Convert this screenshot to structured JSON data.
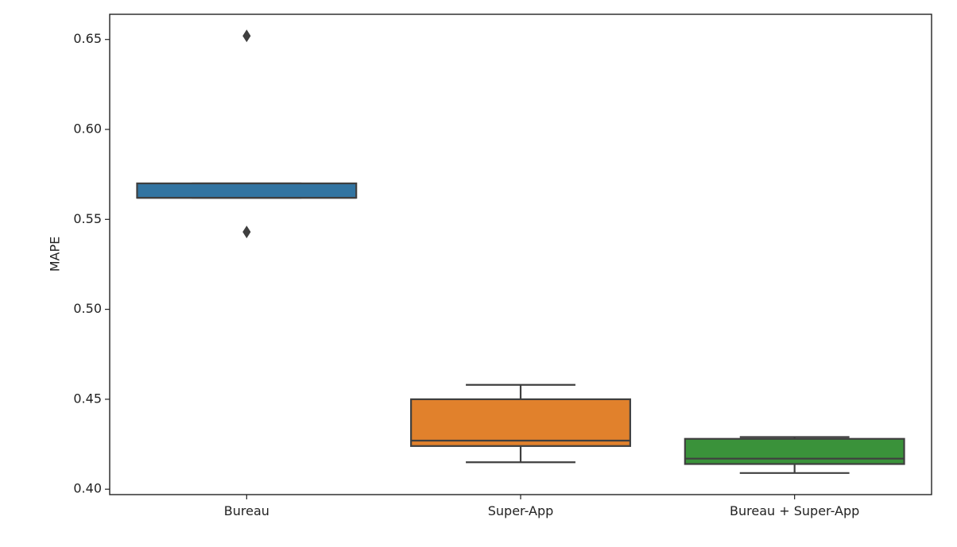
{
  "chart_data": {
    "type": "box",
    "title": "",
    "xlabel": "",
    "ylabel": "MAPE",
    "ylim": [
      0.397,
      0.664
    ],
    "yticks": [
      0.4,
      0.45,
      0.5,
      0.55,
      0.6,
      0.65
    ],
    "ytick_labels": [
      "0.40",
      "0.45",
      "0.50",
      "0.55",
      "0.60",
      "0.65"
    ],
    "categories": [
      "Bureau",
      "Super-App",
      "Bureau + Super-App"
    ],
    "boxes": [
      {
        "category": "Bureau",
        "color": "#3274a1",
        "whisker_low": 0.562,
        "q1": 0.562,
        "median": 0.562,
        "q3": 0.57,
        "whisker_high": 0.57,
        "outliers": [
          0.652,
          0.543
        ]
      },
      {
        "category": "Super-App",
        "color": "#e1812c",
        "whisker_low": 0.415,
        "q1": 0.424,
        "median": 0.427,
        "q3": 0.45,
        "whisker_high": 0.458,
        "outliers": []
      },
      {
        "category": "Bureau + Super-App",
        "color": "#3a923a",
        "whisker_low": 0.409,
        "q1": 0.414,
        "median": 0.417,
        "q3": 0.428,
        "whisker_high": 0.429,
        "outliers": []
      }
    ],
    "grid": false,
    "legend": "none"
  }
}
